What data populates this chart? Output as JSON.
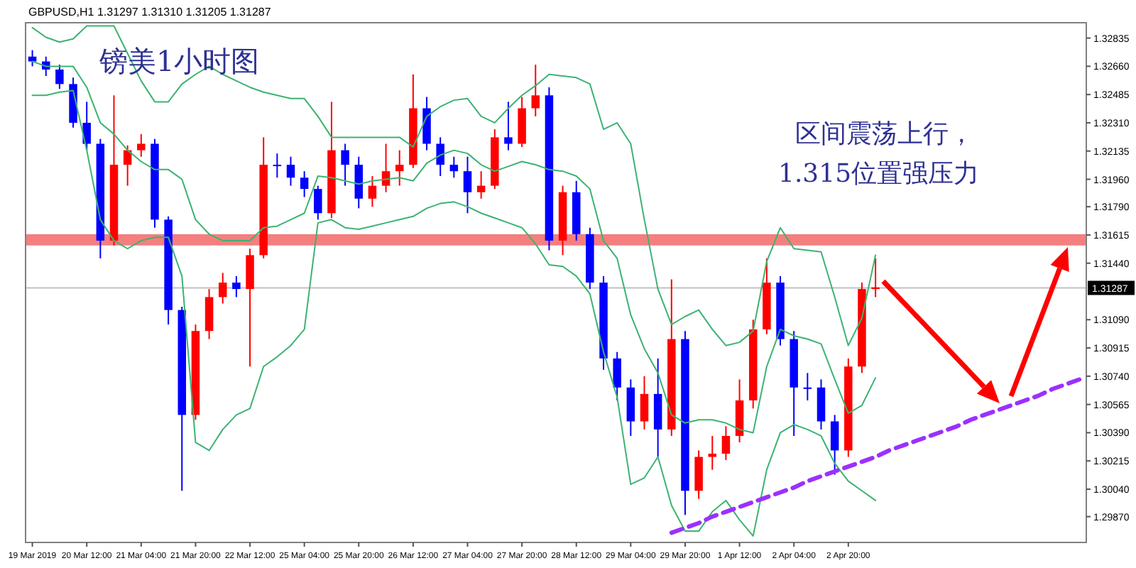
{
  "chart_data": {
    "type": "candlestick",
    "title": "GBPUSD,H1  1.31297 1.31310 1.31205 1.31287",
    "subtitle": "镑美1小时图",
    "annotations": [
      "区间震荡上行，",
      "1.315位置强压力"
    ],
    "categories": [
      "19 Mar 2019",
      null,
      null,
      null,
      "20 Mar 12:00",
      null,
      null,
      null,
      "21 Mar 04:00",
      null,
      null,
      null,
      "21 Mar 20:00",
      null,
      null,
      null,
      "22 Mar 12:00",
      null,
      null,
      null,
      "25 Mar 04:00",
      null,
      null,
      null,
      "25 Mar 20:00",
      null,
      null,
      null,
      "26 Mar 12:00",
      null,
      null,
      null,
      "27 Mar 04:00",
      null,
      null,
      null,
      "27 Mar 20:00",
      null,
      null,
      null,
      "28 Mar 12:00",
      null,
      null,
      null,
      "29 Mar 04:00",
      null,
      null,
      null,
      "29 Mar 20:00",
      null,
      null,
      null,
      "1 Apr 12:00",
      null,
      null,
      null,
      "2 Apr 04:00",
      null,
      null,
      null,
      "2 Apr 20:00",
      null,
      null,
      null,
      null,
      null,
      null,
      null,
      null,
      null,
      null,
      null,
      null,
      null,
      null,
      null,
      null,
      null
    ],
    "ohlc": [
      [
        1.3272,
        1.3276,
        1.3266,
        1.3269
      ],
      [
        1.3269,
        1.3272,
        1.326,
        1.3264
      ],
      [
        1.3264,
        1.3267,
        1.3252,
        1.3255
      ],
      [
        1.3255,
        1.3259,
        1.3228,
        1.3231
      ],
      [
        1.3231,
        1.3244,
        1.3214,
        1.3218
      ],
      [
        1.3218,
        1.3221,
        1.3147,
        1.3158
      ],
      [
        1.3158,
        1.3248,
        1.3155,
        1.3205
      ],
      [
        1.3205,
        1.3217,
        1.3192,
        1.3214
      ],
      [
        1.3214,
        1.3224,
        1.321,
        1.3218
      ],
      [
        1.3218,
        1.3221,
        1.3166,
        1.3171
      ],
      [
        1.3171,
        1.3173,
        1.3106,
        1.3115
      ],
      [
        1.3115,
        1.3117,
        1.3003,
        1.305
      ],
      [
        1.305,
        1.3106,
        1.3047,
        1.3102
      ],
      [
        1.3102,
        1.3128,
        1.3097,
        1.3123
      ],
      [
        1.3123,
        1.3138,
        1.3119,
        1.3132
      ],
      [
        1.3132,
        1.3136,
        1.3123,
        1.3128
      ],
      [
        1.3128,
        1.3153,
        1.308,
        1.3149
      ],
      [
        1.3149,
        1.3222,
        1.3147,
        1.3205
      ],
      [
        1.3205,
        1.3212,
        1.3197,
        1.3205
      ],
      [
        1.3205,
        1.321,
        1.3192,
        1.3197
      ],
      [
        1.3197,
        1.3201,
        1.3185,
        1.319
      ],
      [
        1.319,
        1.3192,
        1.3171,
        1.3175
      ],
      [
        1.3175,
        1.3244,
        1.3172,
        1.3214
      ],
      [
        1.3214,
        1.3218,
        1.3192,
        1.3205
      ],
      [
        1.3205,
        1.321,
        1.3178,
        1.3184
      ],
      [
        1.3184,
        1.3198,
        1.3179,
        1.3192
      ],
      [
        1.3192,
        1.3218,
        1.3188,
        1.3201
      ],
      [
        1.3201,
        1.3214,
        1.3192,
        1.3205
      ],
      [
        1.3205,
        1.3261,
        1.3203,
        1.324
      ],
      [
        1.324,
        1.3247,
        1.3214,
        1.3218
      ],
      [
        1.3218,
        1.3222,
        1.3198,
        1.3205
      ],
      [
        1.3205,
        1.321,
        1.3197,
        1.3201
      ],
      [
        1.3201,
        1.321,
        1.3175,
        1.3188
      ],
      [
        1.3188,
        1.3201,
        1.3184,
        1.3192
      ],
      [
        1.3192,
        1.3227,
        1.319,
        1.3222
      ],
      [
        1.3222,
        1.3244,
        1.3214,
        1.3218
      ],
      [
        1.3218,
        1.3247,
        1.3216,
        1.324
      ],
      [
        1.324,
        1.3267,
        1.3235,
        1.3248
      ],
      [
        1.3248,
        1.3253,
        1.3152,
        1.3158
      ],
      [
        1.3158,
        1.3192,
        1.3149,
        1.3188
      ],
      [
        1.3188,
        1.3195,
        1.3158,
        1.3162
      ],
      [
        1.3162,
        1.3166,
        1.3128,
        1.3132
      ],
      [
        1.3132,
        1.3136,
        1.3078,
        1.3085
      ],
      [
        1.3085,
        1.3089,
        1.3059,
        1.3067
      ],
      [
        1.3067,
        1.3072,
        1.3037,
        1.3046
      ],
      [
        1.3046,
        1.3074,
        1.3041,
        1.3063
      ],
      [
        1.3063,
        1.3085,
        1.3024,
        1.3041
      ],
      [
        1.3041,
        1.3134,
        1.3037,
        1.3097
      ],
      [
        1.3097,
        1.3102,
        1.2988,
        1.3003
      ],
      [
        1.3003,
        1.3028,
        1.2998,
        1.3024
      ],
      [
        1.3024,
        1.3037,
        1.3016,
        1.3026
      ],
      [
        1.3026,
        1.3043,
        1.3022,
        1.3037
      ],
      [
        1.3037,
        1.3072,
        1.3033,
        1.3059
      ],
      [
        1.3059,
        1.3109,
        1.3054,
        1.3103
      ],
      [
        1.3103,
        1.3147,
        1.31,
        1.3132
      ],
      [
        1.3132,
        1.3136,
        1.3093,
        1.3097
      ],
      [
        1.3097,
        1.3102,
        1.3037,
        1.3067
      ],
      [
        1.3067,
        1.3076,
        1.3059,
        1.3067
      ],
      [
        1.3067,
        1.3072,
        1.3041,
        1.3046
      ],
      [
        1.3046,
        1.305,
        1.3013,
        1.3028
      ],
      [
        1.3028,
        1.3085,
        1.3024,
        1.308
      ],
      [
        1.308,
        1.3132,
        1.3076,
        1.3128
      ],
      [
        1.3128,
        1.3147,
        1.3123,
        1.3129
      ],
      null,
      null,
      null,
      null,
      null,
      null,
      null,
      null,
      null,
      null,
      null,
      null,
      null,
      null,
      null
    ],
    "colors": [
      "#0000ff",
      "#0000ff",
      "#0000ff",
      "#0000ff",
      "#0000ff",
      "#0000ff",
      "#ff0000",
      "#ff0000",
      "#ff0000",
      "#0000ff",
      "#0000ff",
      "#0000ff",
      "#ff0000",
      "#ff0000",
      "#ff0000",
      "#0000ff",
      "#ff0000",
      "#ff0000",
      "#0000ff",
      "#0000ff",
      "#0000ff",
      "#0000ff",
      "#ff0000",
      "#0000ff",
      "#0000ff",
      "#ff0000",
      "#ff0000",
      "#ff0000",
      "#ff0000",
      "#0000ff",
      "#0000ff",
      "#0000ff",
      "#0000ff",
      "#ff0000",
      "#ff0000",
      "#0000ff",
      "#ff0000",
      "#ff0000",
      "#0000ff",
      "#ff0000",
      "#0000ff",
      "#0000ff",
      "#0000ff",
      "#0000ff",
      "#0000ff",
      "#ff0000",
      "#0000ff",
      "#ff0000",
      "#0000ff",
      "#ff0000",
      "#ff0000",
      "#ff0000",
      "#ff0000",
      "#ff0000",
      "#ff0000",
      "#0000ff",
      "#0000ff",
      "#0000ff",
      "#0000ff",
      "#0000ff",
      "#ff0000",
      "#ff0000",
      "#ff0000",
      null,
      null,
      null,
      null,
      null,
      null,
      null,
      null,
      null,
      null,
      null,
      null,
      null,
      null,
      null
    ],
    "series": [
      {
        "type": "line",
        "color": "#3cb371",
        "values": [
          1.329,
          1.3284,
          1.3281,
          1.3283,
          1.3291,
          1.3291,
          1.3291,
          1.3274,
          1.3257,
          1.3244,
          1.3244,
          1.3255,
          1.3261,
          1.3266,
          1.3261,
          1.3257,
          1.3253,
          1.325,
          1.3248,
          1.3246,
          1.3246,
          1.3235,
          1.3222,
          1.3222,
          1.3222,
          1.3222,
          1.3222,
          1.3222,
          1.3216,
          1.3235,
          1.3241,
          1.3245,
          1.3246,
          1.3235,
          1.3231,
          1.324,
          1.3248,
          1.3254,
          1.3261,
          1.326,
          1.3259,
          1.3255,
          1.3227,
          1.3231,
          1.3218,
          1.3171,
          1.3128,
          1.3106,
          1.3111,
          1.3115,
          1.3103,
          1.3093,
          1.3095,
          1.3102,
          1.3145,
          1.3166,
          1.3153,
          1.3152,
          1.3151,
          1.3123,
          1.3093,
          1.311,
          1.3149,
          null,
          null,
          null,
          null,
          null,
          null,
          null,
          null,
          null,
          null,
          null,
          null,
          null,
          null,
          null
        ]
      },
      {
        "type": "line",
        "color": "#3cb371",
        "values": [
          1.3269,
          1.3266,
          1.3266,
          1.3266,
          1.3253,
          1.3231,
          1.3224,
          1.3214,
          1.3207,
          1.3202,
          1.3202,
          1.3196,
          1.3171,
          1.3162,
          1.3158,
          1.3158,
          1.3158,
          1.3166,
          1.3167,
          1.3171,
          1.3175,
          1.3198,
          1.3197,
          1.3195,
          1.3193,
          1.3195,
          1.3196,
          1.3197,
          1.3195,
          1.3206,
          1.3211,
          1.3214,
          1.3212,
          1.3205,
          1.3201,
          1.3204,
          1.3207,
          1.3205,
          1.3202,
          1.3201,
          1.3198,
          1.319,
          1.3158,
          1.3147,
          1.3112,
          1.3091,
          1.3076,
          1.305,
          1.3045,
          1.3047,
          1.3047,
          1.3045,
          1.3041,
          1.3039,
          1.308,
          1.3103,
          1.3099,
          1.3097,
          1.3094,
          1.3072,
          1.3051,
          1.3056,
          1.3073,
          null,
          null,
          null,
          null,
          null,
          null,
          null,
          null,
          null,
          null,
          null,
          null,
          null,
          null,
          null
        ]
      },
      {
        "type": "line",
        "color": "#3cb371",
        "values": [
          1.3248,
          1.3248,
          1.325,
          1.3251,
          1.3214,
          1.3171,
          1.3158,
          1.3153,
          1.3158,
          1.316,
          1.316,
          1.3136,
          1.3033,
          1.3028,
          1.3041,
          1.305,
          1.3054,
          1.308,
          1.3086,
          1.3093,
          1.3103,
          1.3169,
          1.3171,
          1.3166,
          1.3165,
          1.3167,
          1.3169,
          1.3171,
          1.3173,
          1.3178,
          1.3181,
          1.3182,
          1.3179,
          1.3175,
          1.3172,
          1.3169,
          1.3166,
          1.3156,
          1.3143,
          1.3142,
          1.3136,
          1.3125,
          1.3089,
          1.3061,
          1.3007,
          1.3011,
          1.3024,
          1.2994,
          1.2978,
          1.2978,
          1.299,
          1.2997,
          1.2985,
          1.2975,
          1.3016,
          1.3039,
          1.3044,
          1.3041,
          1.3037,
          1.302,
          1.3009,
          1.3003,
          1.2997,
          null,
          null,
          null,
          null,
          null,
          null,
          null,
          null,
          null,
          null,
          null,
          null,
          null,
          null,
          null
        ]
      },
      {
        "type": "line",
        "color": "#9b30ff",
        "line_style": "dashed",
        "values": [
          null,
          null,
          null,
          null,
          null,
          null,
          null,
          null,
          null,
          null,
          null,
          null,
          null,
          null,
          null,
          null,
          null,
          null,
          null,
          null,
          null,
          null,
          null,
          null,
          null,
          null,
          null,
          null,
          null,
          null,
          null,
          null,
          null,
          null,
          null,
          null,
          null,
          null,
          null,
          null,
          null,
          null,
          null,
          null,
          null,
          null,
          null,
          1.2977,
          1.298,
          1.2983,
          1.2987,
          1.299,
          1.2993,
          1.2996,
          1.2999,
          1.3002,
          1.3005,
          1.3009,
          1.3012,
          1.3015,
          1.3018,
          1.3021,
          1.3024,
          1.3028,
          1.3031,
          1.3034,
          1.3037,
          1.304,
          1.3043,
          1.3047,
          1.305,
          1.3053,
          1.3056,
          1.3059,
          1.3062,
          1.3066,
          1.3069,
          1.3072
        ]
      }
    ],
    "ylim": [
      1.2971,
      1.3293
    ],
    "yticks": [
      {
        "value": 1.32835,
        "label": "1.32835"
      },
      {
        "value": 1.3266,
        "label": "1.32660"
      },
      {
        "value": 1.32485,
        "label": "1.32485"
      },
      {
        "value": 1.3231,
        "label": "1.32310"
      },
      {
        "value": 1.32135,
        "label": "1.32135"
      },
      {
        "value": 1.3196,
        "label": "1.31960"
      },
      {
        "value": 1.3179,
        "label": "1.31790"
      },
      {
        "value": 1.31615,
        "label": "1.31615"
      },
      {
        "value": 1.3144,
        "label": "1.31440"
      },
      {
        "value": 1.3109,
        "label": "1.31090"
      },
      {
        "value": 1.30915,
        "label": "1.30915"
      },
      {
        "value": 1.3074,
        "label": "1.30740"
      },
      {
        "value": 1.30565,
        "label": "1.30565"
      },
      {
        "value": 1.3039,
        "label": "1.30390"
      },
      {
        "value": 1.30215,
        "label": "1.30215"
      },
      {
        "value": 1.3004,
        "label": "1.30040"
      },
      {
        "value": 1.2987,
        "label": "1.29870"
      }
    ],
    "ref_lines": [
      {
        "axis": "y",
        "value": 1.31287,
        "label": "1.31287",
        "color": "#c0c0c0"
      }
    ],
    "bands": [
      {
        "axis": "y",
        "from": 1.3155,
        "to": 1.3162,
        "color": "#f47f7f"
      }
    ]
  }
}
